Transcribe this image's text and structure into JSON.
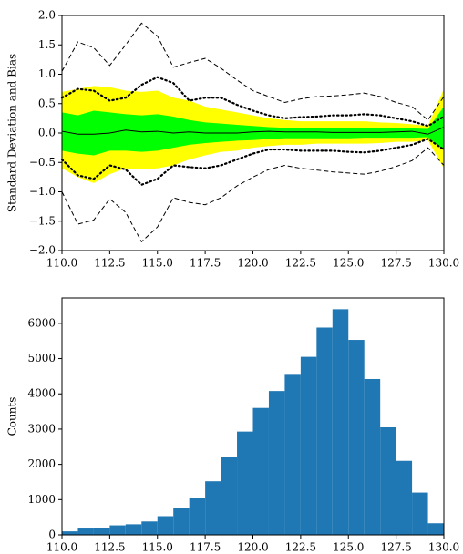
{
  "chart_data": [
    {
      "type": "line",
      "ylabel": "Standard Deviation and Bias",
      "x": [
        110,
        110.8333,
        111.6667,
        112.5,
        113.3333,
        114.1667,
        115,
        115.8333,
        116.6667,
        117.5,
        118.3333,
        119.1667,
        120,
        120.8333,
        121.6667,
        122.5,
        123.3333,
        124.1667,
        125,
        125.8333,
        126.6667,
        127.5,
        128.3333,
        129.1667,
        130
      ],
      "bands": [
        {
          "color": "#ffff00",
          "upper": [
            0.7,
            0.75,
            0.8,
            0.78,
            0.72,
            0.7,
            0.72,
            0.6,
            0.55,
            0.45,
            0.4,
            0.35,
            0.3,
            0.25,
            0.22,
            0.2,
            0.2,
            0.2,
            0.2,
            0.2,
            0.18,
            0.17,
            0.15,
            0.12,
            0.75
          ],
          "lower": [
            -0.6,
            -0.75,
            -0.85,
            -0.7,
            -0.6,
            -0.62,
            -0.6,
            -0.55,
            -0.45,
            -0.38,
            -0.32,
            -0.3,
            -0.25,
            -0.22,
            -0.2,
            -0.2,
            -0.18,
            -0.18,
            -0.18,
            -0.18,
            -0.17,
            -0.15,
            -0.15,
            -0.12,
            -0.6
          ]
        },
        {
          "color": "#00ff00",
          "upper": [
            0.35,
            0.3,
            0.38,
            0.35,
            0.32,
            0.3,
            0.32,
            0.28,
            0.22,
            0.18,
            0.16,
            0.14,
            0.12,
            0.1,
            0.09,
            0.09,
            0.09,
            0.09,
            0.09,
            0.08,
            0.08,
            0.08,
            0.08,
            0.07,
            0.45
          ],
          "lower": [
            -0.3,
            -0.35,
            -0.38,
            -0.3,
            -0.3,
            -0.32,
            -0.3,
            -0.25,
            -0.2,
            -0.17,
            -0.15,
            -0.13,
            -0.12,
            -0.1,
            -0.09,
            -0.09,
            -0.09,
            -0.09,
            -0.09,
            -0.08,
            -0.08,
            -0.08,
            -0.08,
            -0.07,
            -0.3
          ]
        }
      ],
      "lines": [
        {
          "color": "#000000",
          "style": "dashed",
          "values": [
            1.05,
            1.55,
            1.45,
            1.15,
            1.5,
            1.87,
            1.65,
            1.12,
            1.2,
            1.27,
            1.1,
            0.9,
            0.72,
            0.62,
            0.52,
            0.58,
            0.62,
            0.63,
            0.65,
            0.68,
            0.62,
            0.52,
            0.45,
            0.22,
            0.62
          ]
        },
        {
          "color": "#000000",
          "style": "dashed",
          "values": [
            -1.0,
            -1.55,
            -1.48,
            -1.12,
            -1.35,
            -1.85,
            -1.6,
            -1.1,
            -1.18,
            -1.22,
            -1.1,
            -0.9,
            -0.75,
            -0.62,
            -0.55,
            -0.6,
            -0.63,
            -0.66,
            -0.68,
            -0.7,
            -0.65,
            -0.57,
            -0.47,
            -0.25,
            -0.55
          ]
        },
        {
          "color": "#000000",
          "style": "dotted",
          "values": [
            0.6,
            0.75,
            0.72,
            0.55,
            0.6,
            0.82,
            0.95,
            0.85,
            0.55,
            0.6,
            0.6,
            0.48,
            0.38,
            0.3,
            0.25,
            0.27,
            0.28,
            0.3,
            0.3,
            0.32,
            0.3,
            0.25,
            0.2,
            0.12,
            0.28
          ]
        },
        {
          "color": "#000000",
          "style": "dotted",
          "values": [
            -0.45,
            -0.72,
            -0.78,
            -0.55,
            -0.62,
            -0.88,
            -0.78,
            -0.55,
            -0.58,
            -0.6,
            -0.55,
            -0.45,
            -0.35,
            -0.28,
            -0.28,
            -0.3,
            -0.3,
            -0.3,
            -0.32,
            -0.33,
            -0.3,
            -0.25,
            -0.2,
            -0.1,
            -0.28
          ]
        },
        {
          "color": "#000000",
          "style": "solid",
          "values": [
            0.03,
            -0.02,
            -0.02,
            0.0,
            0.05,
            0.02,
            0.03,
            0.0,
            0.02,
            0.0,
            0.0,
            0.0,
            0.02,
            0.03,
            0.02,
            0.02,
            0.02,
            0.01,
            0.01,
            0.01,
            0.01,
            0.02,
            0.03,
            -0.02,
            0.1
          ]
        }
      ],
      "xlim": [
        110,
        130
      ],
      "xticks": [
        {
          "value": 110,
          "label": "110.0"
        },
        {
          "value": 112.5,
          "label": "112.5"
        },
        {
          "value": 115,
          "label": "115.0"
        },
        {
          "value": 117.5,
          "label": "117.5"
        },
        {
          "value": 120,
          "label": "120.0"
        },
        {
          "value": 122.5,
          "label": "122.5"
        },
        {
          "value": 125,
          "label": "125.0"
        },
        {
          "value": 127.5,
          "label": "127.5"
        },
        {
          "value": 130,
          "label": "130.0"
        }
      ],
      "ylim": [
        -2,
        2
      ],
      "yticks": [
        {
          "value": -2,
          "label": "−2.0"
        },
        {
          "value": -1.5,
          "label": "−1.5"
        },
        {
          "value": -1,
          "label": "−1.0"
        },
        {
          "value": -0.5,
          "label": "−0.5"
        },
        {
          "value": 0,
          "label": "0.0"
        },
        {
          "value": 0.5,
          "label": "0.5"
        },
        {
          "value": 1,
          "label": "1.0"
        },
        {
          "value": 1.5,
          "label": "1.5"
        },
        {
          "value": 2,
          "label": "2.0"
        }
      ]
    },
    {
      "type": "histogram",
      "ylabel": "Counts",
      "color": "#1f77b4",
      "bins": [
        110,
        110.8333,
        111.6667,
        112.5,
        113.3333,
        114.1667,
        115,
        115.8333,
        116.6667,
        117.5,
        118.3333,
        119.1667,
        120,
        120.8333,
        121.6667,
        122.5,
        123.3333,
        124.1667,
        125,
        125.8333,
        126.6667,
        127.5,
        128.3333,
        129.1667,
        130
      ],
      "values": [
        100,
        180,
        200,
        270,
        300,
        380,
        530,
        750,
        1050,
        1520,
        2200,
        2930,
        3600,
        4080,
        4540,
        5050,
        5880,
        6400,
        5530,
        4420,
        3050,
        2100,
        1200,
        330
      ],
      "xlim": [
        110,
        130
      ],
      "xticks": [
        {
          "value": 110,
          "label": "110.0"
        },
        {
          "value": 112.5,
          "label": "112.5"
        },
        {
          "value": 115,
          "label": "115.0"
        },
        {
          "value": 117.5,
          "label": "117.5"
        },
        {
          "value": 120,
          "label": "120.0"
        },
        {
          "value": 122.5,
          "label": "122.5"
        },
        {
          "value": 125,
          "label": "125.0"
        },
        {
          "value": 127.5,
          "label": "127.5"
        },
        {
          "value": 130,
          "label": "130.0"
        }
      ],
      "ylim": [
        0,
        6720
      ],
      "yticks": [
        0,
        1000,
        2000,
        3000,
        4000,
        5000,
        6000
      ]
    }
  ]
}
